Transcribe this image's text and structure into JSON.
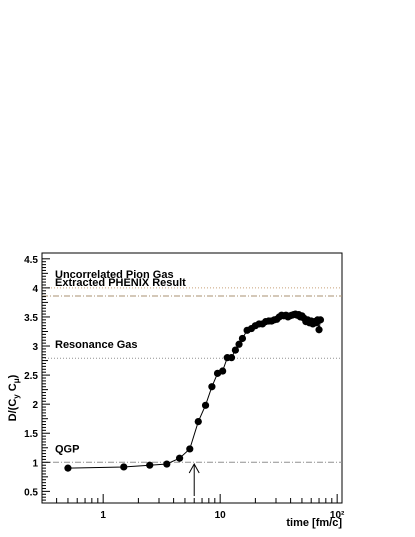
{
  "chart_data": {
    "type": "scatter",
    "xscale": "log",
    "xlim": [
      0.3,
      110
    ],
    "ylim": [
      0.3,
      4.6
    ],
    "grid": false,
    "xlabel": "time [fm/c]",
    "ylabel": "D/(C_y C_μ)",
    "x_tick_labels": [
      "1",
      "10",
      "10²"
    ],
    "y_tick_labels": [
      "0.5",
      "1",
      "1.5",
      "2",
      "2.5",
      "3",
      "3.5",
      "4",
      "4.5"
    ],
    "y_ticks": [
      0.5,
      1,
      1.5,
      2,
      2.5,
      3,
      3.5,
      4,
      4.5
    ],
    "reference_lines": [
      {
        "label": "Uncorrelated Pion Gas",
        "y": 4.0,
        "style": "dotted",
        "color": "#c8a078"
      },
      {
        "label": "Extracted PHENIX Result",
        "y": 3.86,
        "style": "dash-dot",
        "color": "#a89070"
      },
      {
        "label": "Resonance Gas",
        "y": 2.79,
        "style": "dotted",
        "color": "#909090"
      },
      {
        "label": "QGP",
        "y": 1.0,
        "style": "dash-dot",
        "color": "#909090"
      }
    ],
    "annotation": {
      "type": "arrow",
      "x": 6.0,
      "y_from": 0.42,
      "y_to": 0.97
    },
    "series": [
      {
        "x": [
          0.5,
          1.5,
          2.5,
          3.5,
          4.5,
          5.5,
          6.5,
          7.5,
          8.5,
          9.5,
          10.5,
          11.5,
          12.5,
          13.5,
          14.5,
          15.5,
          17,
          18.5,
          20,
          21.5,
          23,
          24.5,
          26,
          27.5,
          29,
          30.5,
          32,
          33.5,
          35,
          36.5,
          38,
          39.5,
          41,
          42.5,
          44,
          45.5,
          47,
          48.5,
          50,
          52,
          54,
          56,
          58,
          60,
          62,
          64,
          66,
          68,
          70,
          72
        ],
        "y": [
          0.9,
          0.92,
          0.95,
          0.97,
          1.07,
          1.23,
          1.7,
          1.98,
          2.3,
          2.53,
          2.57,
          2.8,
          2.8,
          2.93,
          3.03,
          3.13,
          3.27,
          3.3,
          3.35,
          3.38,
          3.38,
          3.42,
          3.43,
          3.43,
          3.45,
          3.46,
          3.5,
          3.53,
          3.52,
          3.53,
          3.5,
          3.52,
          3.53,
          3.54,
          3.55,
          3.53,
          3.54,
          3.5,
          3.52,
          3.48,
          3.42,
          3.45,
          3.4,
          3.43,
          3.38,
          3.42,
          3.4,
          3.45,
          3.28,
          3.45
        ]
      }
    ]
  }
}
